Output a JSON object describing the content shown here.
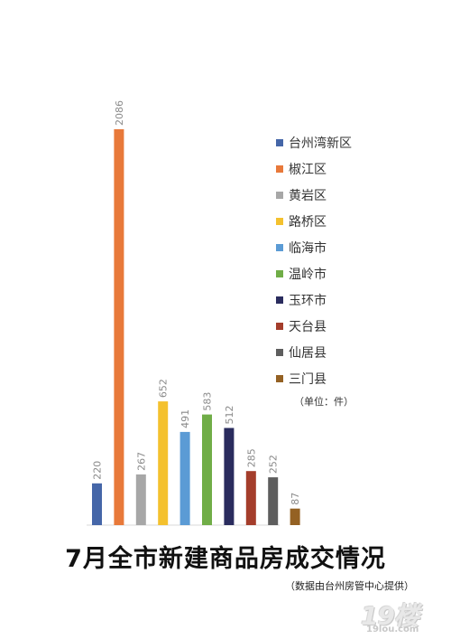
{
  "chart_data": {
    "type": "bar",
    "title": "7月全市新建商品房成交情况",
    "unit_note": "（单位：件）",
    "source_note": "（数据由台州房管中心提供）",
    "categories": [
      "台州湾新区",
      "椒江区",
      "黄岩区",
      "路桥区",
      "临海市",
      "温岭市",
      "玉环市",
      "天台县",
      "仙居县",
      "三门县"
    ],
    "values": [
      220,
      2086,
      267,
      652,
      491,
      583,
      512,
      285,
      252,
      87
    ],
    "colors": [
      "#4566a8",
      "#e8793a",
      "#a7a7a7",
      "#f4c12e",
      "#5b9bd5",
      "#70ad47",
      "#2a2c5e",
      "#a43d2b",
      "#5e5e5e",
      "#946123"
    ],
    "ylim": [
      0,
      2086
    ],
    "grid": false,
    "legend_position": "right",
    "xlabel": "",
    "ylabel": ""
  },
  "watermark": {
    "logo_text": "19楼",
    "domain_text": "19lou.com"
  }
}
